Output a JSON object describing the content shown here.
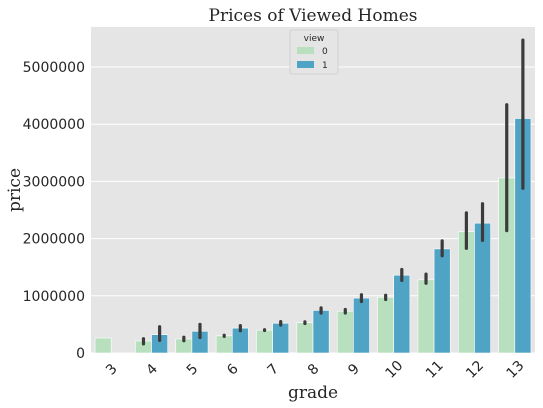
{
  "chart_data": {
    "type": "bar",
    "title": "Prices of Viewed Homes",
    "xlabel": "grade",
    "ylabel": "price",
    "categories": [
      "3",
      "4",
      "5",
      "6",
      "7",
      "8",
      "9",
      "10",
      "11",
      "12",
      "13"
    ],
    "legend": {
      "title": "view",
      "placement": "top-center"
    },
    "ylim": [
      0,
      5700000
    ],
    "yticks": [
      0,
      1000000,
      2000000,
      3000000,
      4000000,
      5000000
    ],
    "ytick_labels": [
      "0",
      "1000000",
      "2000000",
      "3000000",
      "4000000",
      "5000000"
    ],
    "grid": true,
    "series": [
      {
        "name": "0",
        "color": "#b8e0be",
        "values": [
          262000,
          210000,
          245000,
          300000,
          400000,
          530000,
          730000,
          975000,
          1280000,
          2120000,
          3060000
        ],
        "err_low": [
          null,
          160000,
          215000,
          290000,
          393000,
          515000,
          700000,
          935000,
          1220000,
          1830000,
          2140000
        ],
        "err_high": [
          null,
          250000,
          275000,
          310000,
          408000,
          545000,
          760000,
          1010000,
          1380000,
          2450000,
          4340000
        ]
      },
      {
        "name": "1",
        "color": "#4fa3c5",
        "values": [
          null,
          320000,
          380000,
          435000,
          520000,
          745000,
          960000,
          1360000,
          1820000,
          2270000,
          4100000
        ],
        "err_low": [
          null,
          220000,
          270000,
          390000,
          490000,
          700000,
          900000,
          1270000,
          1700000,
          1970000,
          2880000
        ],
        "err_high": [
          null,
          460000,
          500000,
          480000,
          550000,
          790000,
          1020000,
          1460000,
          1960000,
          2610000,
          5470000
        ]
      }
    ]
  }
}
